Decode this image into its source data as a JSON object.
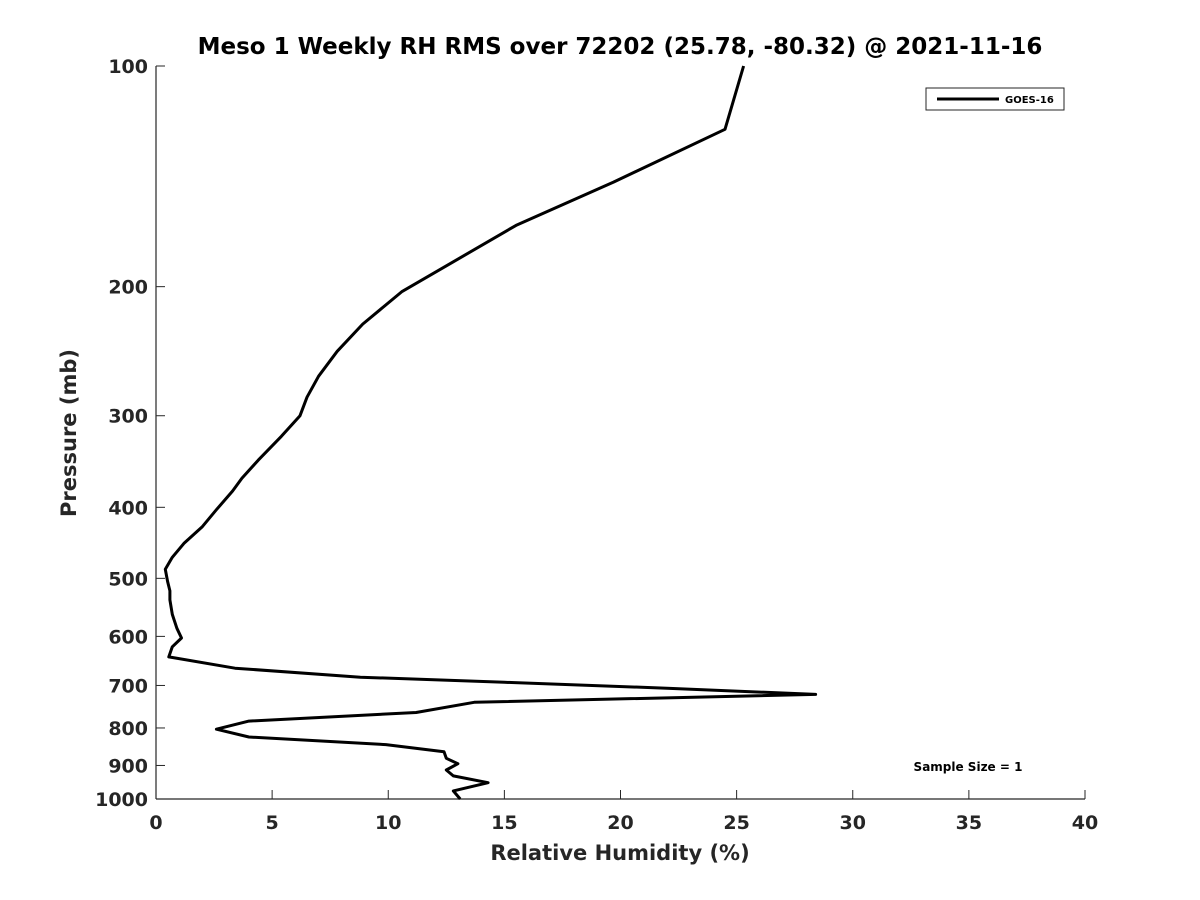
{
  "chart_data": {
    "type": "line",
    "title": "Meso 1 Weekly RH RMS over 72202 (25.78, -80.32) @ 2021-11-16",
    "xlabel": "Relative Humidity (%)",
    "ylabel": "Pressure (mb)",
    "xlim": [
      0,
      40
    ],
    "ylim": [
      100,
      1000
    ],
    "y_scale": "log",
    "y_reversed": true,
    "grid": false,
    "x_ticks": [
      0,
      5,
      10,
      15,
      20,
      25,
      30,
      35,
      40
    ],
    "x_tick_labels": [
      "0",
      "5",
      "10",
      "15",
      "20",
      "25",
      "30",
      "35",
      "40"
    ],
    "y_ticks": [
      100,
      200,
      300,
      400,
      500,
      600,
      700,
      800,
      900,
      1000
    ],
    "y_tick_labels": [
      "100",
      "200",
      "300",
      "400",
      "500",
      "600",
      "700",
      "800",
      "900",
      "1000"
    ],
    "legend": {
      "position": "top-right",
      "entries": [
        "GOES-16"
      ]
    },
    "annotation": "Sample Size = 1",
    "series": [
      {
        "name": "GOES-16",
        "color": "#000000",
        "points": [
          [
            25.3,
            100
          ],
          [
            24.5,
            122
          ],
          [
            19.7,
            144
          ],
          [
            15.5,
            165
          ],
          [
            12.8,
            185
          ],
          [
            10.6,
            203
          ],
          [
            8.9,
            225
          ],
          [
            7.8,
            245
          ],
          [
            7.0,
            265
          ],
          [
            6.5,
            283
          ],
          [
            6.2,
            300
          ],
          [
            5.4,
            320
          ],
          [
            4.4,
            345
          ],
          [
            3.7,
            365
          ],
          [
            3.3,
            380
          ],
          [
            2.6,
            403
          ],
          [
            2.0,
            425
          ],
          [
            1.2,
            448
          ],
          [
            0.7,
            468
          ],
          [
            0.4,
            486
          ],
          [
            0.5,
            505
          ],
          [
            0.6,
            520
          ],
          [
            0.6,
            535
          ],
          [
            0.7,
            560
          ],
          [
            0.9,
            585
          ],
          [
            1.1,
            603
          ],
          [
            0.7,
            620
          ],
          [
            0.55,
            640
          ],
          [
            3.4,
            663
          ],
          [
            8.8,
            682
          ],
          [
            15.0,
            693
          ],
          [
            22.0,
            706
          ],
          [
            28.4,
            720
          ],
          [
            13.7,
            738
          ],
          [
            11.2,
            762
          ],
          [
            4.0,
            783
          ],
          [
            2.6,
            803
          ],
          [
            4.0,
            823
          ],
          [
            9.9,
            843
          ],
          [
            12.4,
            862
          ],
          [
            12.5,
            880
          ],
          [
            13.0,
            895
          ],
          [
            12.5,
            913
          ],
          [
            12.8,
            930
          ],
          [
            14.3,
            950
          ],
          [
            12.8,
            975
          ],
          [
            13.1,
            1000
          ]
        ]
      }
    ]
  }
}
